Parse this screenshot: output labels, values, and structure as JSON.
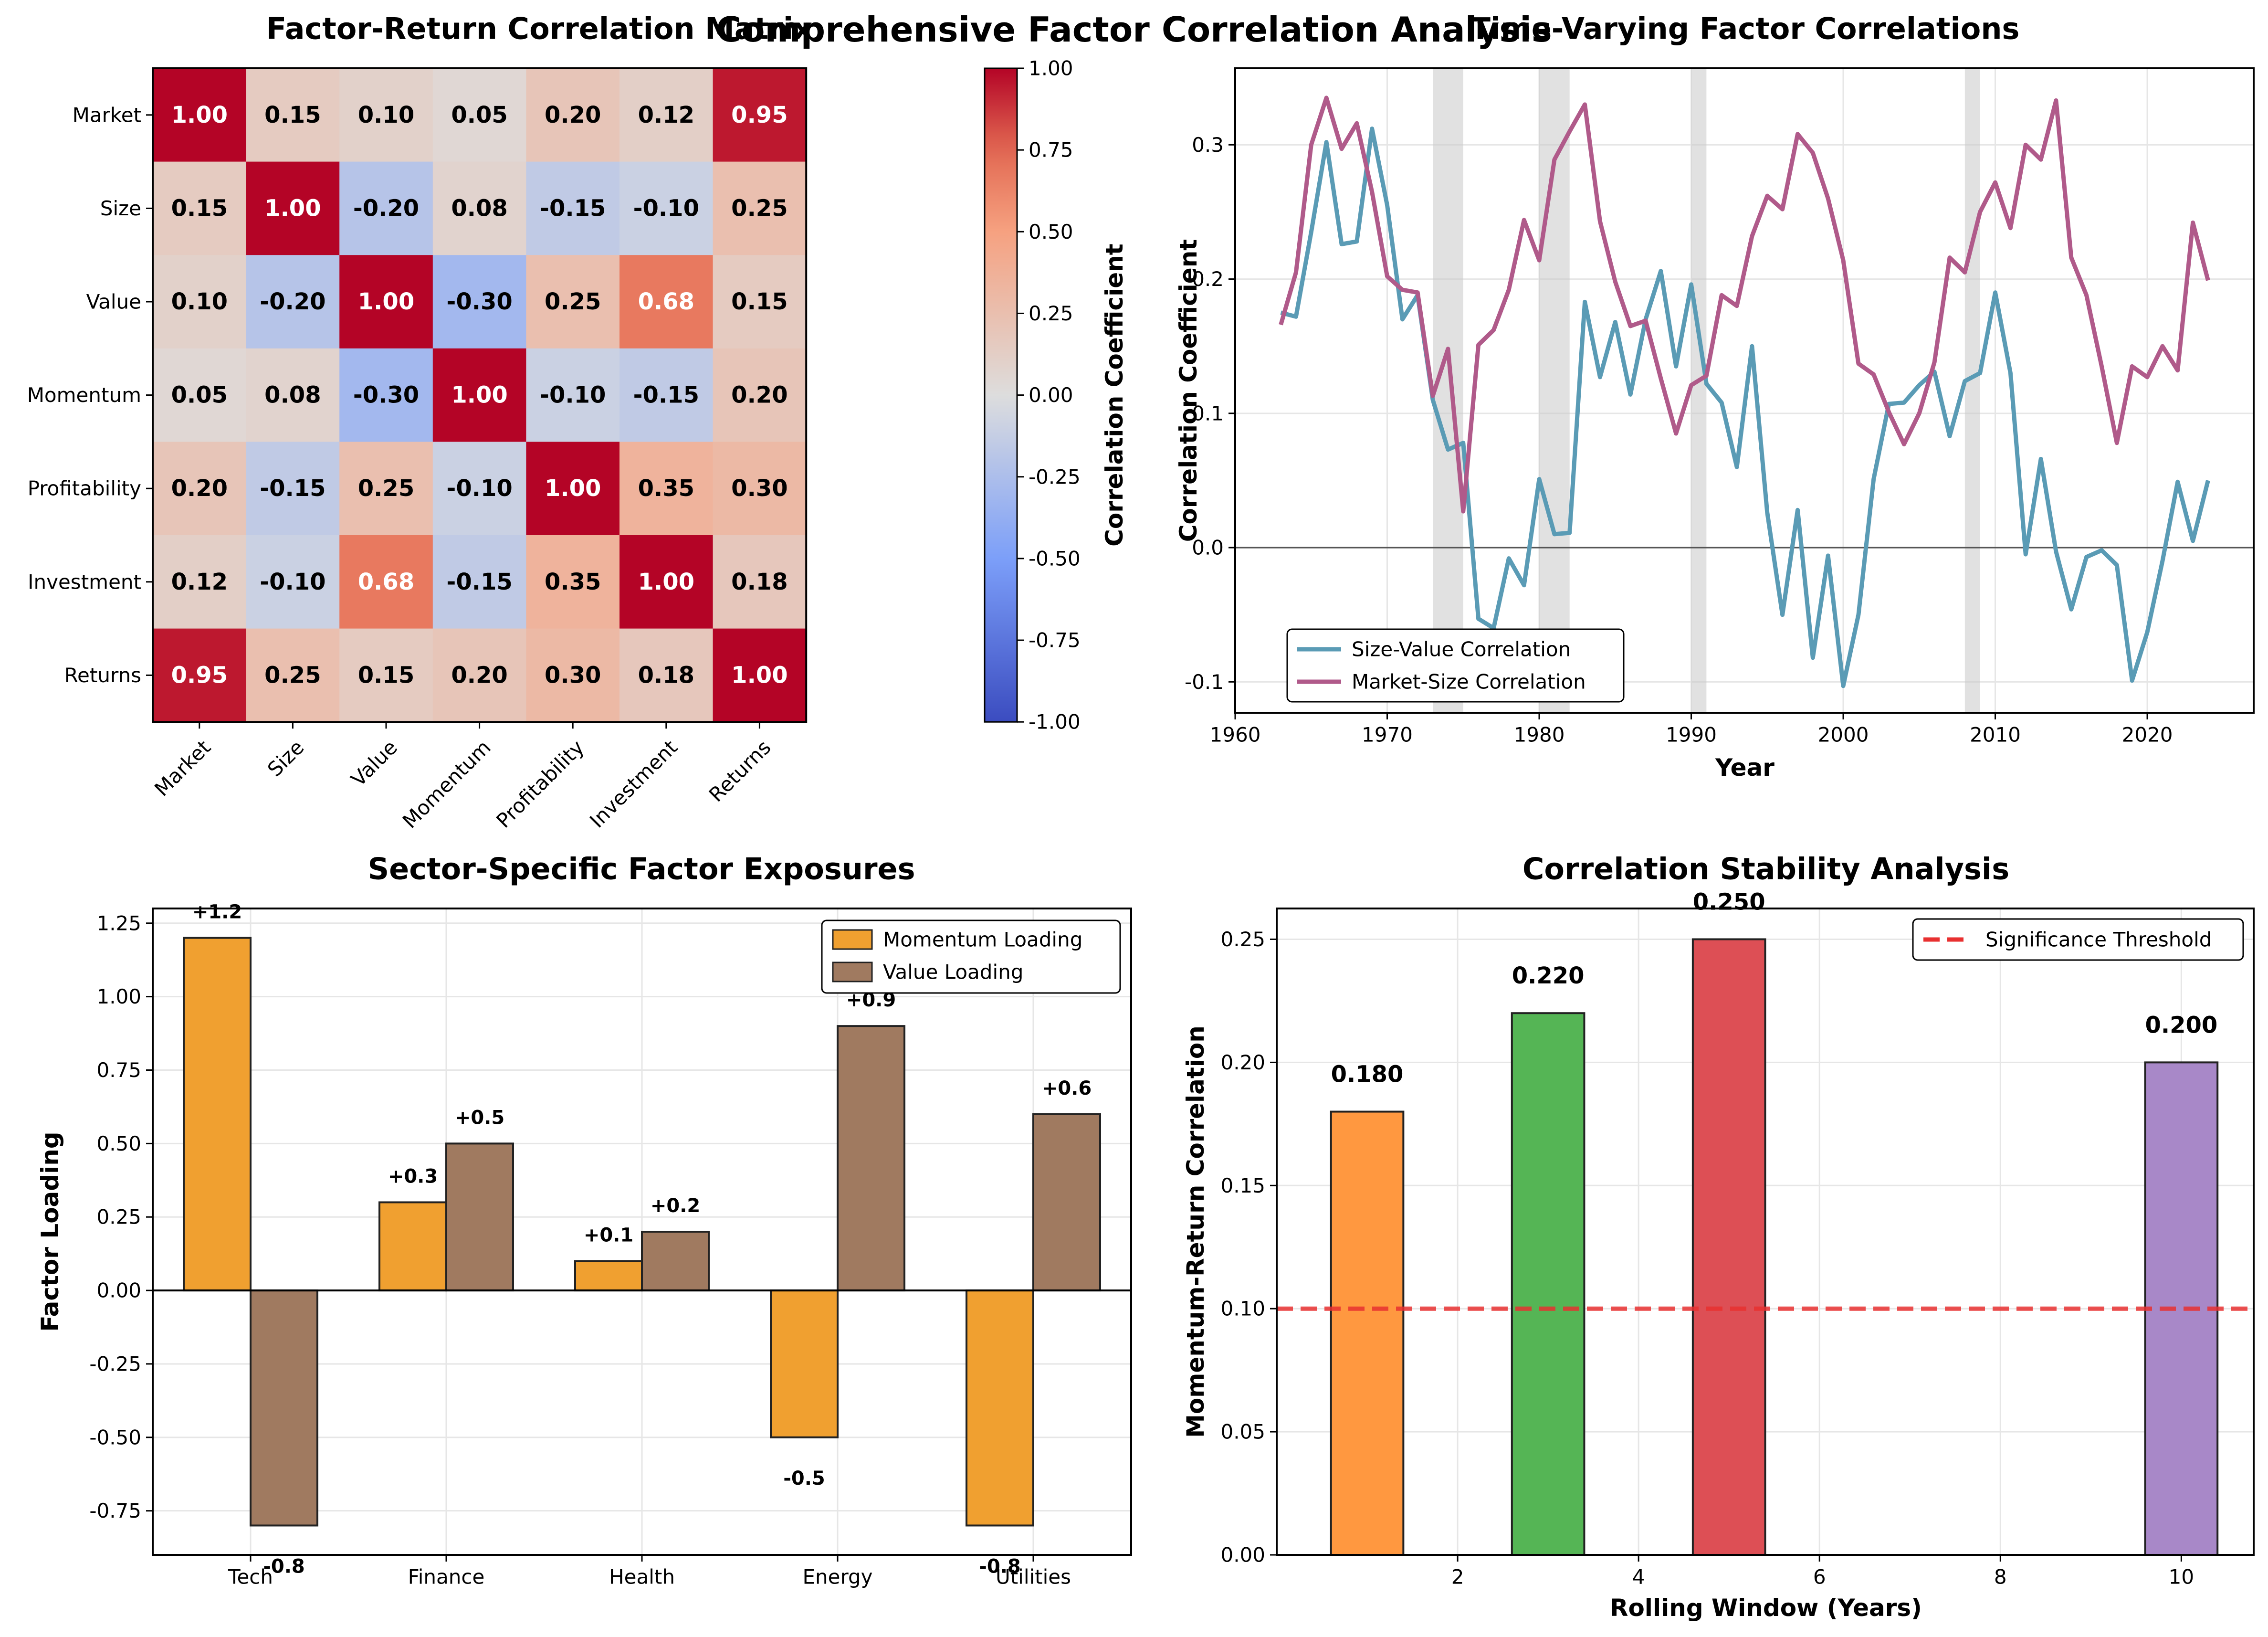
{
  "suptitle": "Comprehensive Factor Correlation Analysis",
  "colors": {
    "momentum_bar": "#F0A030",
    "value_bar": "#A07A60",
    "size_value_line": "#5A9BB5",
    "market_size_line": "#B05A8A",
    "threshold": "#E83030",
    "window_bars": [
      "#FF9840",
      "#55B555",
      "#DD4F55",
      "#A888C8"
    ]
  },
  "chart_data": [
    {
      "type": "heatmap",
      "title": "Factor-Return Correlation Matrix",
      "labels": [
        "Market",
        "Size",
        "Value",
        "Momentum",
        "Profitability",
        "Investment",
        "Returns"
      ],
      "matrix": [
        [
          1.0,
          0.15,
          0.1,
          0.05,
          0.2,
          0.12,
          0.95
        ],
        [
          0.15,
          1.0,
          -0.2,
          0.08,
          -0.15,
          -0.1,
          0.25
        ],
        [
          0.1,
          -0.2,
          1.0,
          -0.3,
          0.25,
          0.68,
          0.15
        ],
        [
          0.05,
          0.08,
          -0.3,
          1.0,
          -0.1,
          -0.15,
          0.2
        ],
        [
          0.2,
          -0.15,
          0.25,
          -0.1,
          1.0,
          0.35,
          0.3
        ],
        [
          0.12,
          -0.1,
          0.68,
          -0.15,
          0.35,
          1.0,
          0.18
        ],
        [
          0.95,
          0.25,
          0.15,
          0.2,
          0.3,
          0.18,
          1.0
        ]
      ],
      "colorbar": {
        "label": "Correlation Coefficient",
        "range": [
          -1,
          1
        ],
        "ticks": [
          "-1.00",
          "-0.75",
          "-0.50",
          "-0.25",
          "0.00",
          "0.25",
          "0.50",
          "0.75",
          "1.00"
        ],
        "colormap": "coolwarm"
      }
    },
    {
      "type": "line",
      "title": "Time-Varying Factor Correlations",
      "xlabel": "Year",
      "ylabel": "Correlation Coefficient",
      "xlim": [
        1960,
        2027
      ],
      "ylim": [
        -0.123,
        0.357
      ],
      "xticks": [
        1960,
        1970,
        1980,
        1990,
        2000,
        2010,
        2020
      ],
      "yticks": [
        -0.1,
        0.0,
        0.1,
        0.2,
        0.3
      ],
      "shaded_periods": [
        [
          1973,
          1975
        ],
        [
          1980,
          1982
        ],
        [
          1990,
          1991
        ],
        [
          2008,
          2009
        ]
      ],
      "x": [
        1963,
        1964,
        1965,
        1966,
        1967,
        1968,
        1969,
        1970,
        1971,
        1972,
        1973,
        1974,
        1975,
        1976,
        1977,
        1978,
        1979,
        1980,
        1981,
        1982,
        1983,
        1984,
        1985,
        1986,
        1987,
        1988,
        1989,
        1990,
        1991,
        1992,
        1993,
        1994,
        1995,
        1996,
        1997,
        1998,
        1999,
        2000,
        2001,
        2002,
        2003,
        2004,
        2005,
        2006,
        2007,
        2008,
        2009,
        2010,
        2011,
        2012,
        2013,
        2014,
        2015,
        2016,
        2017,
        2018,
        2019,
        2020,
        2021,
        2022,
        2023,
        2024
      ],
      "series": [
        {
          "name": "Size-Value Correlation",
          "values": [
            0.175,
            0.172,
            0.235,
            0.302,
            0.226,
            0.228,
            0.312,
            0.255,
            0.17,
            0.188,
            0.11,
            0.073,
            0.078,
            -0.053,
            -0.06,
            -0.008,
            -0.028,
            0.051,
            0.01,
            0.011,
            0.183,
            0.127,
            0.168,
            0.114,
            0.17,
            0.206,
            0.135,
            0.196,
            0.122,
            0.108,
            0.06,
            0.15,
            0.026,
            -0.05,
            0.028,
            -0.082,
            -0.006,
            -0.103,
            -0.05,
            0.051,
            0.107,
            0.108,
            0.121,
            0.131,
            0.083,
            0.124,
            0.13,
            0.19,
            0.13,
            -0.005,
            0.066,
            -0.003,
            -0.046,
            -0.007,
            -0.002,
            -0.013,
            -0.099,
            -0.063,
            -0.01,
            0.049,
            0.005,
            0.05
          ]
        },
        {
          "name": "Market-Size Correlation",
          "values": [
            0.166,
            0.205,
            0.3,
            0.335,
            0.297,
            0.316,
            0.265,
            0.202,
            0.192,
            0.19,
            0.113,
            0.148,
            0.027,
            0.151,
            0.162,
            0.192,
            0.244,
            0.214,
            0.289,
            0.31,
            0.33,
            0.243,
            0.198,
            0.165,
            0.169,
            0.126,
            0.085,
            0.121,
            0.128,
            0.188,
            0.18,
            0.232,
            0.262,
            0.252,
            0.308,
            0.294,
            0.26,
            0.214,
            0.137,
            0.129,
            0.101,
            0.077,
            0.1,
            0.138,
            0.216,
            0.205,
            0.25,
            0.272,
            0.238,
            0.3,
            0.289,
            0.333,
            0.216,
            0.188,
            0.135,
            0.078,
            0.135,
            0.127,
            0.15,
            0.132,
            0.242,
            0.199
          ]
        }
      ],
      "legend": "lower-left"
    },
    {
      "type": "bar",
      "title": "Sector-Specific Factor Exposures",
      "ylabel": "Factor Loading",
      "xlabel": "",
      "categories": [
        "Tech",
        "Finance",
        "Health",
        "Energy",
        "Utilities"
      ],
      "ylim": [
        -0.9,
        1.3
      ],
      "yticks": [
        "1.25",
        "1.00",
        "0.75",
        "0.50",
        "0.25",
        "0.00",
        "-0.25",
        "-0.50",
        "-0.75"
      ],
      "series": [
        {
          "name": "Momentum Loading",
          "values": [
            1.2,
            0.3,
            0.1,
            -0.5,
            -0.8
          ],
          "labels": [
            "+1.2",
            "+0.3",
            "+0.1",
            "-0.5",
            "-0.8"
          ]
        },
        {
          "name": "Value Loading",
          "values": [
            -0.8,
            0.5,
            0.2,
            0.9,
            0.6
          ],
          "labels": [
            "-0.8",
            "+0.5",
            "+0.2",
            "+0.9",
            "+0.6"
          ]
        }
      ],
      "legend": "top-right"
    },
    {
      "type": "bar",
      "title": "Correlation Stability Analysis",
      "xlabel": "Rolling Window (Years)",
      "ylabel": "Momentum-Return Correlation",
      "x": [
        1,
        3,
        5,
        10
      ],
      "values": [
        0.18,
        0.22,
        0.25,
        0.2
      ],
      "labels": [
        "0.180",
        "0.220",
        "0.250",
        "0.200"
      ],
      "xlim": [
        0.0,
        10.8
      ],
      "ylim": [
        0,
        0.2625
      ],
      "xticks": [
        2,
        4,
        6,
        8,
        10
      ],
      "yticks": [
        "0.00",
        "0.05",
        "0.10",
        "0.15",
        "0.20",
        "0.25"
      ],
      "threshold": {
        "name": "Significance Threshold",
        "value": 0.1
      },
      "legend": "top-right"
    }
  ]
}
